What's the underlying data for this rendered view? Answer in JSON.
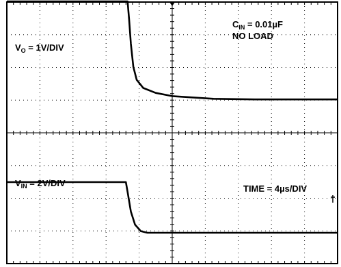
{
  "chart_data": {
    "type": "line",
    "x_unit_label": "TIME = 4µs/DIV",
    "grid": true,
    "x_divisions": 10,
    "y_divisions": 8,
    "x_range_us": [
      0,
      40
    ],
    "series": [
      {
        "name": "V",
        "name_sub": "O",
        "scale_suffix": " = 1V/DIV",
        "volts_per_div": 1,
        "points_us_v": [
          [
            0,
            3.1
          ],
          [
            14.6,
            3.1
          ],
          [
            14.8,
            2.5
          ],
          [
            15.0,
            1.8
          ],
          [
            15.3,
            1.1
          ],
          [
            15.7,
            0.7
          ],
          [
            16.5,
            0.45
          ],
          [
            18,
            0.3
          ],
          [
            20,
            0.2
          ],
          [
            25,
            0.12
          ],
          [
            30,
            0.1
          ],
          [
            40,
            0.1
          ]
        ]
      },
      {
        "name": "V",
        "name_sub": "IN",
        "scale_suffix": " = 2V/DIV",
        "volts_per_div": 2,
        "points_us_v": [
          [
            0,
            3.1
          ],
          [
            14.4,
            3.1
          ],
          [
            14.6,
            2.5
          ],
          [
            15.0,
            1.3
          ],
          [
            15.5,
            0.5
          ],
          [
            16.2,
            0.1
          ],
          [
            17,
            0.0
          ],
          [
            40,
            0.0
          ]
        ]
      }
    ],
    "annotation": {
      "cin_label": "C",
      "cin_sub": "IN",
      "cin_value": " = 0.01µF",
      "load": "NO LOAD"
    }
  }
}
